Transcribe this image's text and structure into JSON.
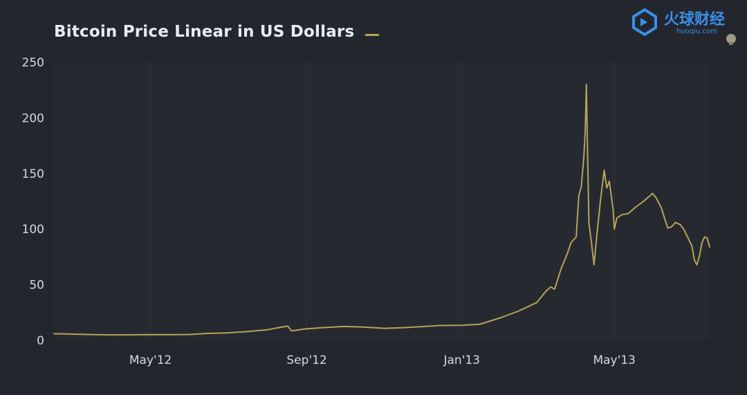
{
  "chart_data": {
    "type": "line",
    "title": "Bitcoin Price Linear in US Dollars",
    "xlabel": "",
    "ylabel": "",
    "ylim": [
      0,
      250
    ],
    "yticks": [
      0,
      50,
      100,
      150,
      200,
      250
    ],
    "xticks": [
      {
        "label": "May'12",
        "date": "2012-05-01"
      },
      {
        "label": "Sep'12",
        "date": "2012-09-01"
      },
      {
        "label": "Jan'13",
        "date": "2013-01-01"
      },
      {
        "label": "May'13",
        "date": "2013-05-01"
      }
    ],
    "xlim": [
      "2012-02-15",
      "2013-07-15"
    ],
    "grid": "vertical-faint",
    "legend": "top, after title",
    "series": [
      {
        "color": "#b7a359",
        "points": [
          [
            "2012-02-15",
            6.0
          ],
          [
            "2012-03-01",
            5.6
          ],
          [
            "2012-03-15",
            5.2
          ],
          [
            "2012-04-01",
            4.9
          ],
          [
            "2012-04-15",
            5.0
          ],
          [
            "2012-05-01",
            5.1
          ],
          [
            "2012-05-15",
            5.1
          ],
          [
            "2012-06-01",
            5.3
          ],
          [
            "2012-06-15",
            6.2
          ],
          [
            "2012-07-01",
            6.8
          ],
          [
            "2012-07-15",
            7.8
          ],
          [
            "2012-08-01",
            9.5
          ],
          [
            "2012-08-10",
            11.5
          ],
          [
            "2012-08-17",
            12.8
          ],
          [
            "2012-08-20",
            8.5
          ],
          [
            "2012-09-01",
            10.4
          ],
          [
            "2012-09-15",
            11.5
          ],
          [
            "2012-10-01",
            12.5
          ],
          [
            "2012-10-15",
            12.0
          ],
          [
            "2012-11-01",
            10.8
          ],
          [
            "2012-11-15",
            11.3
          ],
          [
            "2012-12-01",
            12.4
          ],
          [
            "2012-12-15",
            13.4
          ],
          [
            "2013-01-01",
            13.5
          ],
          [
            "2013-01-15",
            14.4
          ],
          [
            "2013-02-01",
            20.5
          ],
          [
            "2013-02-15",
            26.5
          ],
          [
            "2013-03-01",
            34.0
          ],
          [
            "2013-03-08",
            44.0
          ],
          [
            "2013-03-12",
            48.0
          ],
          [
            "2013-03-15",
            46.0
          ],
          [
            "2013-03-20",
            64.0
          ],
          [
            "2013-03-25",
            78.0
          ],
          [
            "2013-03-28",
            88.0
          ],
          [
            "2013-04-01",
            93.0
          ],
          [
            "2013-04-03",
            130.0
          ],
          [
            "2013-04-05",
            138.0
          ],
          [
            "2013-04-07",
            165.0
          ],
          [
            "2013-04-08",
            186.0
          ],
          [
            "2013-04-09",
            230.0
          ],
          [
            "2013-04-10",
            165.0
          ],
          [
            "2013-04-11",
            105.0
          ],
          [
            "2013-04-13",
            88.0
          ],
          [
            "2013-04-15",
            68.0
          ],
          [
            "2013-04-17",
            92.0
          ],
          [
            "2013-04-20",
            125.0
          ],
          [
            "2013-04-23",
            153.0
          ],
          [
            "2013-04-25",
            137.0
          ],
          [
            "2013-04-27",
            143.0
          ],
          [
            "2013-04-30",
            118.0
          ],
          [
            "2013-05-01",
            100.0
          ],
          [
            "2013-05-03",
            110.0
          ],
          [
            "2013-05-07",
            113.0
          ],
          [
            "2013-05-12",
            114.0
          ],
          [
            "2013-05-18",
            120.0
          ],
          [
            "2013-05-24",
            125.0
          ],
          [
            "2013-05-28",
            129.0
          ],
          [
            "2013-05-31",
            132.0
          ],
          [
            "2013-06-03",
            128.0
          ],
          [
            "2013-06-07",
            119.0
          ],
          [
            "2013-06-10",
            108.0
          ],
          [
            "2013-06-12",
            101.0
          ],
          [
            "2013-06-15",
            102.0
          ],
          [
            "2013-06-18",
            106.0
          ],
          [
            "2013-06-22",
            104.0
          ],
          [
            "2013-06-25",
            99.0
          ],
          [
            "2013-06-28",
            92.0
          ],
          [
            "2013-07-01",
            85.0
          ],
          [
            "2013-07-03",
            72.0
          ],
          [
            "2013-07-05",
            68.0
          ],
          [
            "2013-07-07",
            76.0
          ],
          [
            "2013-07-09",
            88.0
          ],
          [
            "2013-07-11",
            93.0
          ],
          [
            "2013-07-13",
            92.0
          ],
          [
            "2013-07-15",
            84.0
          ]
        ]
      }
    ]
  },
  "watermark": {
    "brand_cn": "火球财经",
    "url": "huoqiu.com",
    "color": "#3b8ee8"
  },
  "colors": {
    "background": "#23272d",
    "plot_background": "#262a30",
    "axis_text": "#d7dade",
    "grid": "#2f343b"
  }
}
